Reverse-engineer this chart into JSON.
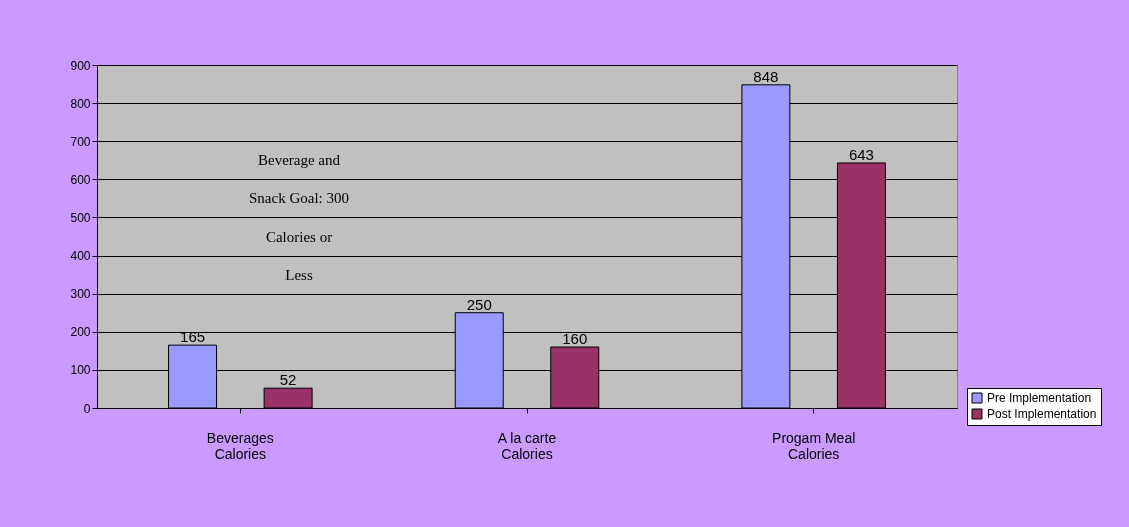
{
  "chart_data": {
    "type": "bar",
    "categories": [
      "Beverages\nCalories",
      "A la carte\nCalories",
      "Progam Meal\nCalories"
    ],
    "series": [
      {
        "name": "Pre Implementation",
        "color": "#9999ff",
        "values": [
          165,
          250,
          848
        ]
      },
      {
        "name": "Post Implementation",
        "color": "#993366",
        "values": [
          52,
          160,
          643
        ]
      }
    ],
    "ylim": [
      0,
      900
    ],
    "yticks": [
      0,
      100,
      200,
      300,
      400,
      500,
      600,
      700,
      800,
      900
    ],
    "grid": "y",
    "data_labels": true,
    "legend": "bottom right",
    "annotations": [
      "Beverage and Snack Goal: 300 Calories or Less"
    ]
  }
}
